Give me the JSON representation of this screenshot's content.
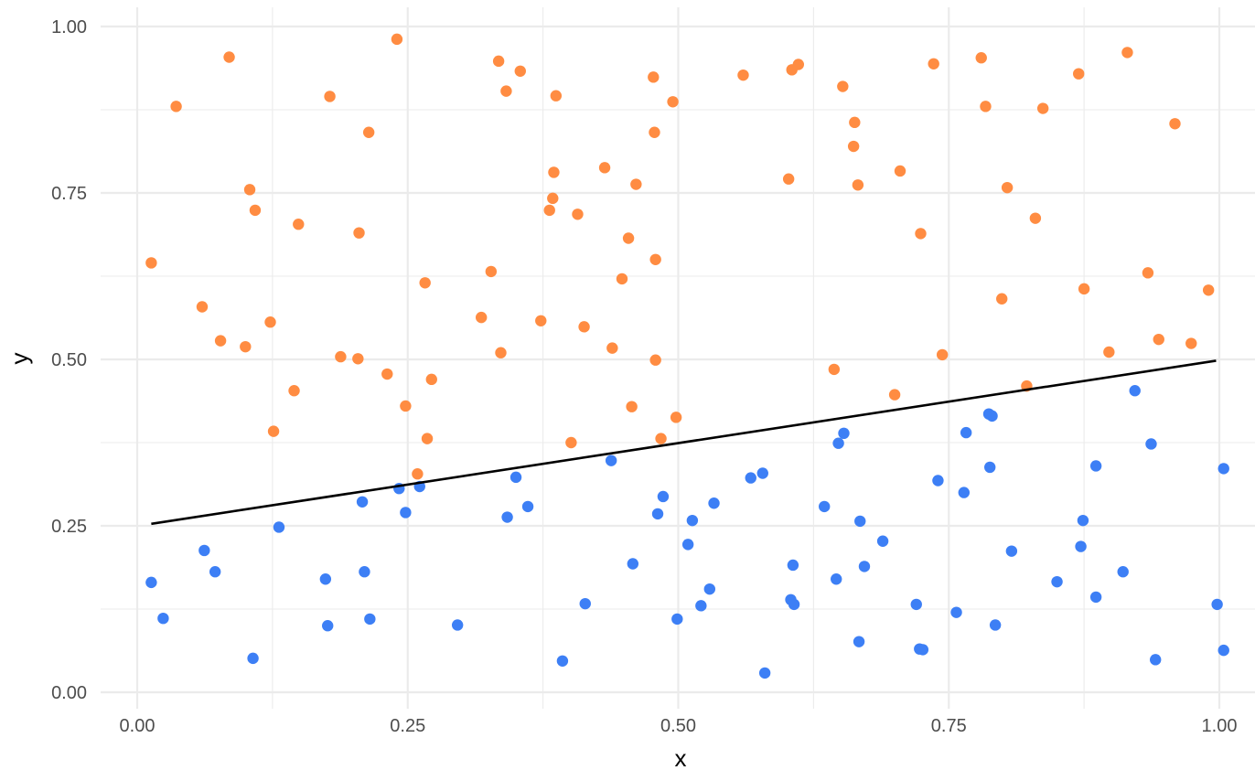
{
  "chart_data": {
    "type": "scatter",
    "title": "",
    "xlabel": "x",
    "ylabel": "y",
    "xlim": [
      0,
      1
    ],
    "ylim": [
      0,
      1
    ],
    "x_ticks": [
      "0.00",
      "0.25",
      "0.50",
      "0.75",
      "1.00"
    ],
    "y_ticks": [
      "0.00",
      "0.25",
      "0.50",
      "0.75",
      "1.00"
    ],
    "grid": true,
    "legend": "none",
    "series": [
      {
        "color": "#FF8C42",
        "points": [
          [
            0.013,
            0.645
          ],
          [
            0.036,
            0.88
          ],
          [
            0.06,
            0.579
          ],
          [
            0.077,
            0.528
          ],
          [
            0.085,
            0.954
          ],
          [
            0.1,
            0.519
          ],
          [
            0.104,
            0.755
          ],
          [
            0.109,
            0.724
          ],
          [
            0.123,
            0.556
          ],
          [
            0.126,
            0.392
          ],
          [
            0.145,
            0.453
          ],
          [
            0.149,
            0.703
          ],
          [
            0.178,
            0.895
          ],
          [
            0.188,
            0.504
          ],
          [
            0.204,
            0.501
          ],
          [
            0.205,
            0.69
          ],
          [
            0.214,
            0.841
          ],
          [
            0.231,
            0.478
          ],
          [
            0.24,
            0.981
          ],
          [
            0.248,
            0.43
          ],
          [
            0.259,
            0.328
          ],
          [
            0.266,
            0.615
          ],
          [
            0.268,
            0.381
          ],
          [
            0.272,
            0.47
          ],
          [
            0.318,
            0.563
          ],
          [
            0.327,
            0.632
          ],
          [
            0.334,
            0.948
          ],
          [
            0.336,
            0.51
          ],
          [
            0.341,
            0.903
          ],
          [
            0.354,
            0.933
          ],
          [
            0.373,
            0.558
          ],
          [
            0.381,
            0.724
          ],
          [
            0.384,
            0.742
          ],
          [
            0.385,
            0.781
          ],
          [
            0.387,
            0.896
          ],
          [
            0.401,
            0.375
          ],
          [
            0.407,
            0.718
          ],
          [
            0.413,
            0.549
          ],
          [
            0.432,
            0.788
          ],
          [
            0.439,
            0.517
          ],
          [
            0.448,
            0.621
          ],
          [
            0.454,
            0.682
          ],
          [
            0.457,
            0.429
          ],
          [
            0.461,
            0.763
          ],
          [
            0.477,
            0.924
          ],
          [
            0.478,
            0.841
          ],
          [
            0.479,
            0.65
          ],
          [
            0.479,
            0.499
          ],
          [
            0.484,
            0.381
          ],
          [
            0.495,
            0.887
          ],
          [
            0.498,
            0.413
          ],
          [
            0.56,
            0.927
          ],
          [
            0.602,
            0.771
          ],
          [
            0.605,
            0.935
          ],
          [
            0.611,
            0.943
          ],
          [
            0.644,
            0.485
          ],
          [
            0.652,
            0.91
          ],
          [
            0.662,
            0.82
          ],
          [
            0.663,
            0.856
          ],
          [
            0.666,
            0.762
          ],
          [
            0.7,
            0.447
          ],
          [
            0.705,
            0.783
          ],
          [
            0.724,
            0.689
          ],
          [
            0.736,
            0.944
          ],
          [
            0.744,
            0.507
          ],
          [
            0.78,
            0.953
          ],
          [
            0.784,
            0.88
          ],
          [
            0.799,
            0.591
          ],
          [
            0.804,
            0.758
          ],
          [
            0.822,
            0.46
          ],
          [
            0.83,
            0.712
          ],
          [
            0.837,
            0.877
          ],
          [
            0.87,
            0.929
          ],
          [
            0.875,
            0.606
          ],
          [
            0.898,
            0.511
          ],
          [
            0.915,
            0.961
          ],
          [
            0.934,
            0.63
          ],
          [
            0.944,
            0.53
          ],
          [
            0.959,
            0.854
          ],
          [
            0.974,
            0.524
          ],
          [
            0.99,
            0.604
          ]
        ]
      },
      {
        "color": "#3D7FF5",
        "points": [
          [
            0.013,
            0.165
          ],
          [
            0.024,
            0.111
          ],
          [
            0.062,
            0.213
          ],
          [
            0.072,
            0.181
          ],
          [
            0.107,
            0.051
          ],
          [
            0.131,
            0.248
          ],
          [
            0.174,
            0.17
          ],
          [
            0.176,
            0.1
          ],
          [
            0.208,
            0.286
          ],
          [
            0.21,
            0.181
          ],
          [
            0.215,
            0.11
          ],
          [
            0.242,
            0.306
          ],
          [
            0.248,
            0.27
          ],
          [
            0.261,
            0.309
          ],
          [
            0.296,
            0.101
          ],
          [
            0.342,
            0.263
          ],
          [
            0.35,
            0.323
          ],
          [
            0.361,
            0.279
          ],
          [
            0.393,
            0.047
          ],
          [
            0.414,
            0.133
          ],
          [
            0.438,
            0.348
          ],
          [
            0.458,
            0.193
          ],
          [
            0.481,
            0.268
          ],
          [
            0.486,
            0.294
          ],
          [
            0.499,
            0.11
          ],
          [
            0.509,
            0.222
          ],
          [
            0.513,
            0.258
          ],
          [
            0.521,
            0.13
          ],
          [
            0.529,
            0.155
          ],
          [
            0.533,
            0.284
          ],
          [
            0.567,
            0.322
          ],
          [
            0.578,
            0.329
          ],
          [
            0.58,
            0.029
          ],
          [
            0.604,
            0.139
          ],
          [
            0.606,
            0.191
          ],
          [
            0.607,
            0.132
          ],
          [
            0.635,
            0.279
          ],
          [
            0.646,
            0.17
          ],
          [
            0.648,
            0.374
          ],
          [
            0.653,
            0.389
          ],
          [
            0.667,
            0.076
          ],
          [
            0.668,
            0.257
          ],
          [
            0.672,
            0.189
          ],
          [
            0.689,
            0.227
          ],
          [
            0.72,
            0.132
          ],
          [
            0.723,
            0.065
          ],
          [
            0.726,
            0.064
          ],
          [
            0.74,
            0.318
          ],
          [
            0.757,
            0.12
          ],
          [
            0.764,
            0.3
          ],
          [
            0.766,
            0.39
          ],
          [
            0.787,
            0.418
          ],
          [
            0.788,
            0.338
          ],
          [
            0.79,
            0.415
          ],
          [
            0.793,
            0.101
          ],
          [
            0.808,
            0.212
          ],
          [
            0.85,
            0.166
          ],
          [
            0.872,
            0.219
          ],
          [
            0.874,
            0.258
          ],
          [
            0.886,
            0.34
          ],
          [
            0.886,
            0.143
          ],
          [
            0.911,
            0.181
          ],
          [
            0.922,
            0.453
          ],
          [
            0.937,
            0.373
          ],
          [
            0.941,
            0.049
          ],
          [
            0.998,
            0.132
          ],
          [
            1.004,
            0.063
          ],
          [
            1.004,
            0.336
          ]
        ]
      }
    ],
    "trend_line": {
      "color": "#000000",
      "x": [
        0.013,
        0.997
      ],
      "y": [
        0.253,
        0.498
      ]
    }
  }
}
